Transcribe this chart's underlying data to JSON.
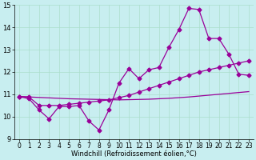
{
  "background_color": "#c8eef0",
  "line_color": "#990099",
  "xlim_min": -0.5,
  "xlim_max": 23.5,
  "ylim_min": 9,
  "ylim_max": 15,
  "xlabel": "Windchill (Refroidissement éolien,°C)",
  "x": [
    0,
    1,
    2,
    3,
    4,
    5,
    6,
    7,
    8,
    9,
    10,
    11,
    12,
    13,
    14,
    15,
    16,
    17,
    18,
    19,
    20,
    21,
    22,
    23
  ],
  "line_jagged": [
    10.9,
    10.8,
    10.3,
    9.9,
    10.45,
    10.45,
    10.5,
    9.8,
    9.4,
    10.3,
    11.5,
    12.15,
    11.7,
    12.1,
    12.2,
    13.1,
    13.9,
    14.85,
    14.8,
    13.5,
    13.5,
    12.8,
    11.9,
    11.85
  ],
  "line_diagonal": [
    10.9,
    10.88,
    10.5,
    10.5,
    10.5,
    10.55,
    10.6,
    10.65,
    10.7,
    10.75,
    10.85,
    10.95,
    11.1,
    11.25,
    11.4,
    11.55,
    11.7,
    11.85,
    12.0,
    12.1,
    12.2,
    12.3,
    12.4,
    12.5
  ],
  "line_flat": [
    10.9,
    10.88,
    10.86,
    10.84,
    10.82,
    10.8,
    10.79,
    10.78,
    10.77,
    10.76,
    10.75,
    10.76,
    10.77,
    10.78,
    10.8,
    10.82,
    10.85,
    10.88,
    10.92,
    10.96,
    11.0,
    11.04,
    11.08,
    11.12
  ],
  "yticks": [
    9,
    10,
    11,
    12,
    13,
    14,
    15
  ],
  "xticks": [
    0,
    1,
    2,
    3,
    4,
    5,
    6,
    7,
    8,
    9,
    10,
    11,
    12,
    13,
    14,
    15,
    16,
    17,
    18,
    19,
    20,
    21,
    22,
    23
  ],
  "tick_fontsize": 6,
  "xlabel_fontsize": 6,
  "marker": "D",
  "markersize": 2.5,
  "linewidth": 0.9,
  "grid_color": "#aaddcc"
}
